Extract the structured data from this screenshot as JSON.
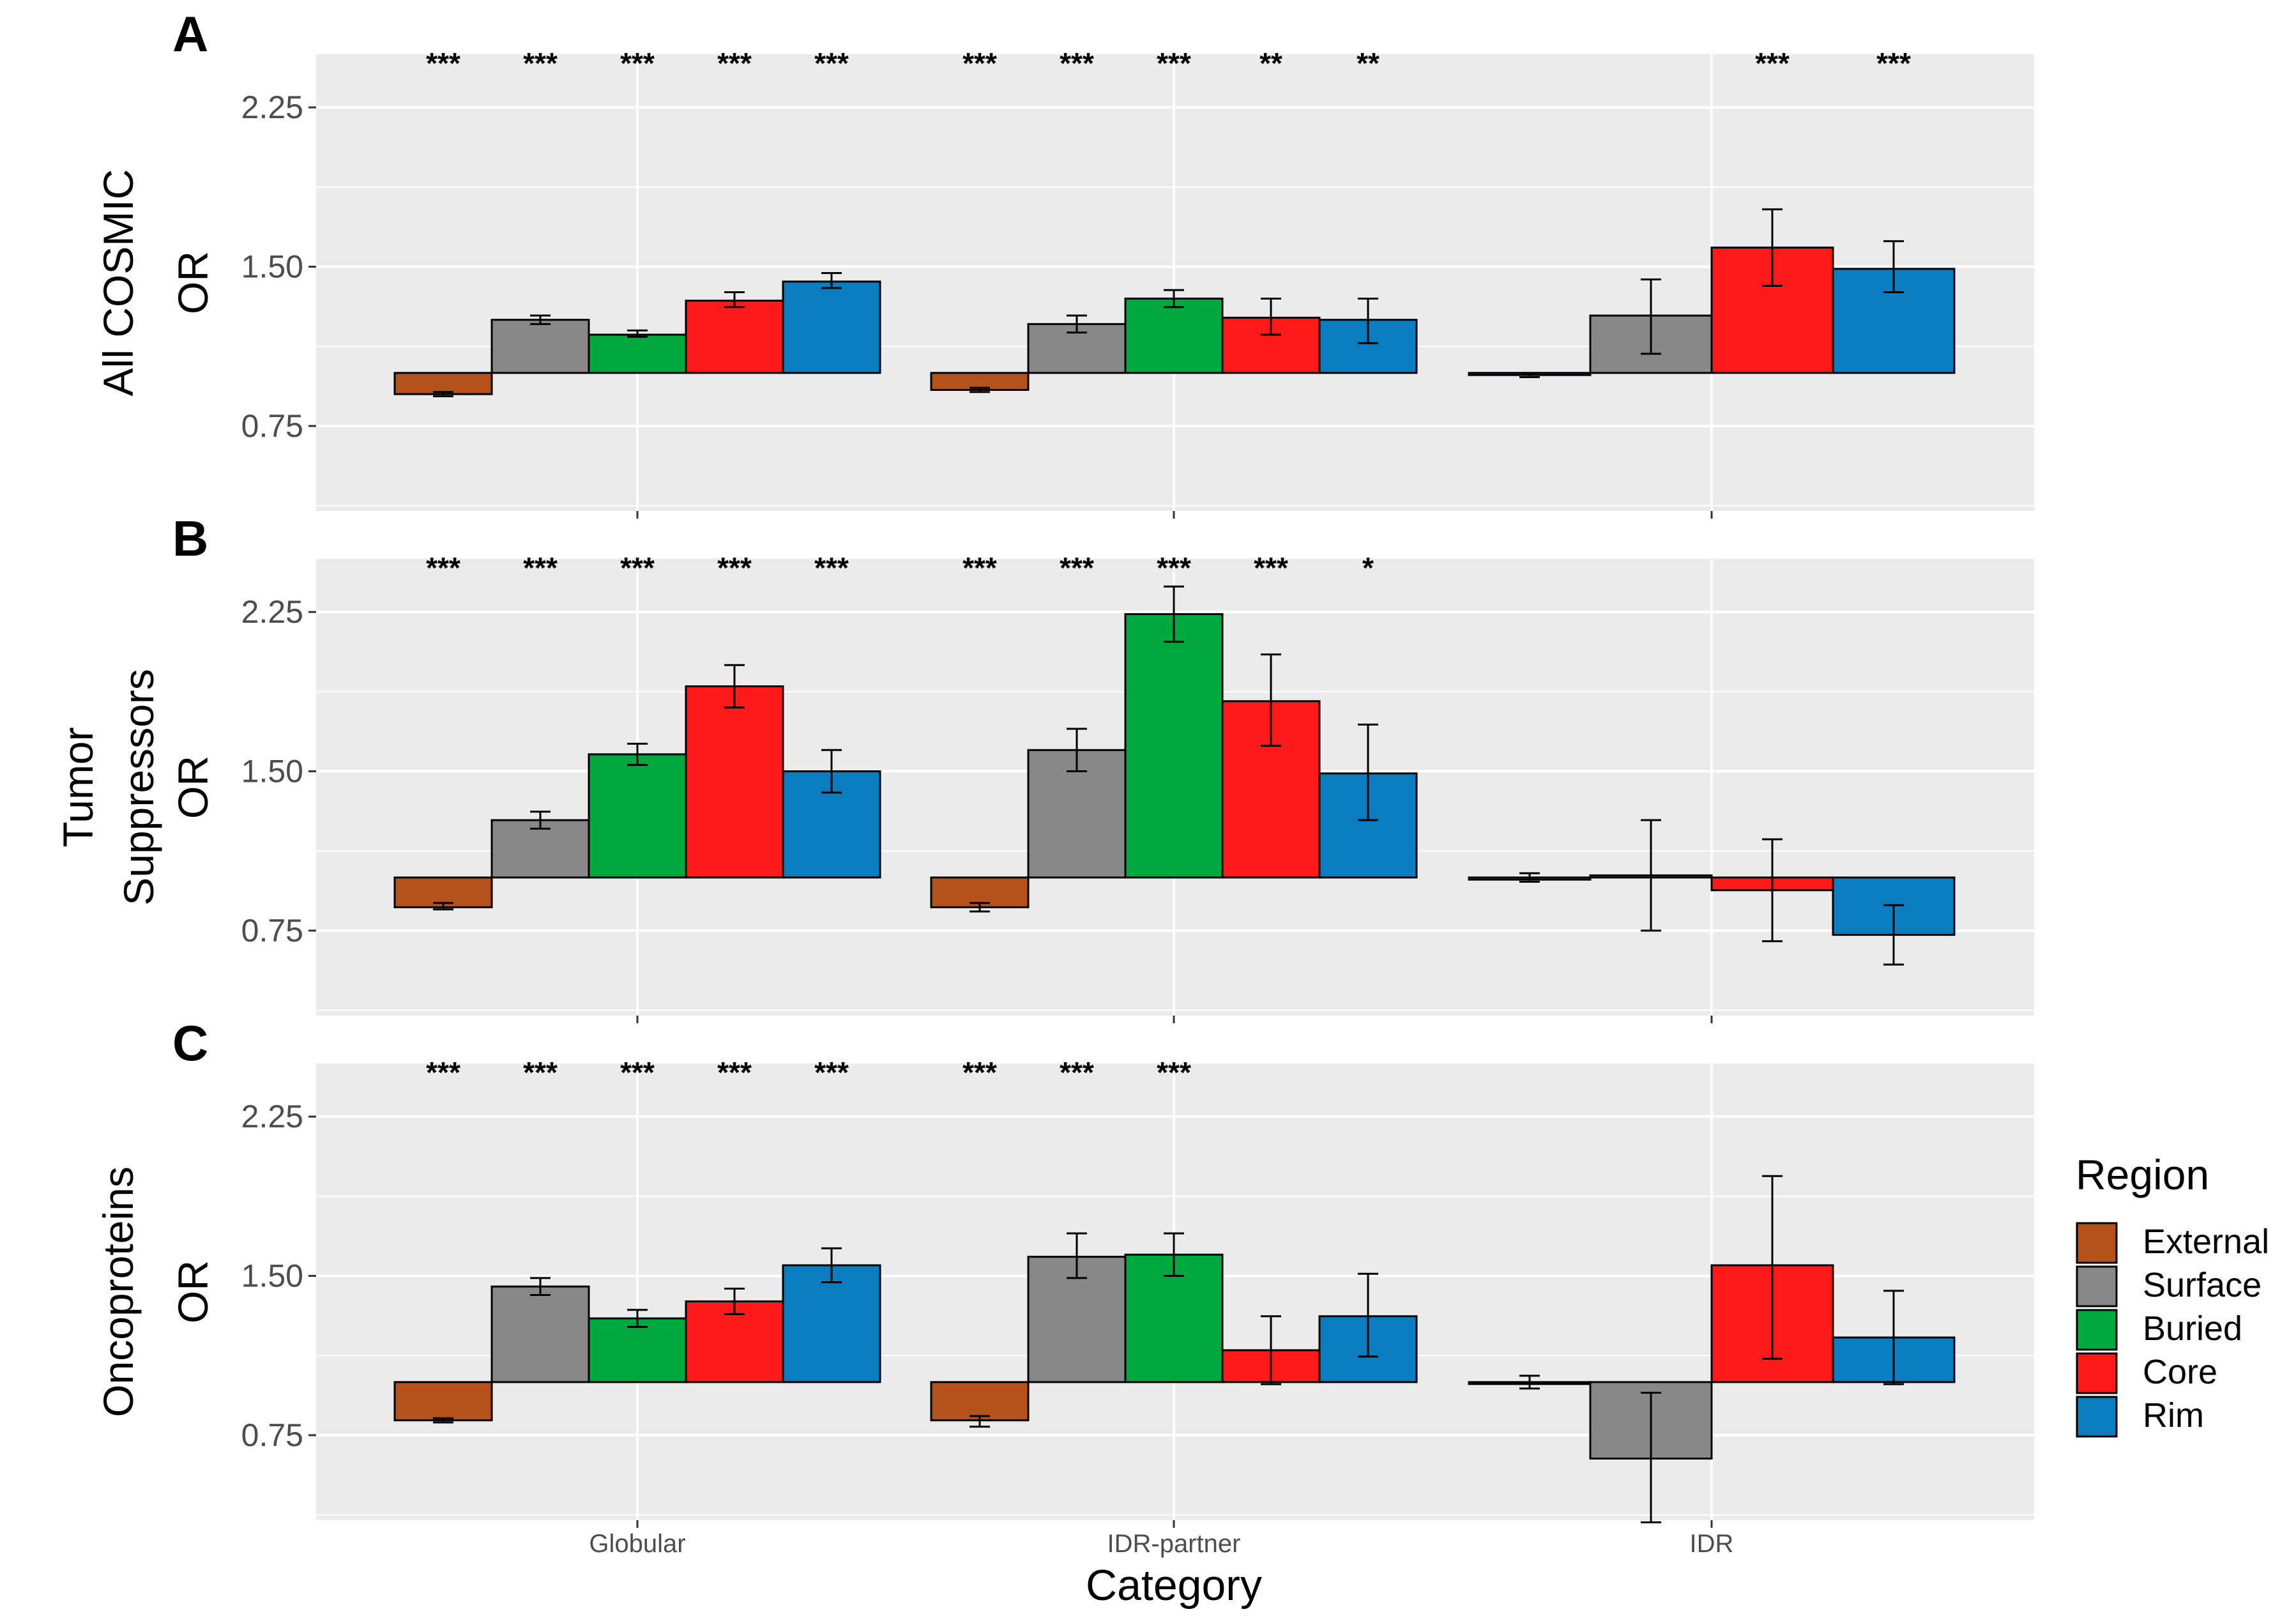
{
  "chart_data": {
    "type": "bar",
    "xlabel": "Category",
    "ylabel": "OR",
    "categories": [
      "Globular",
      "IDR-partner",
      "IDR"
    ],
    "yticks": [
      0.75,
      1.5,
      2.25
    ],
    "yticks_labels": [
      "0.75",
      "1.50",
      "2.25"
    ],
    "ylim": [
      0.35,
      2.5
    ],
    "baseline": 1.0,
    "grid": true,
    "legend": {
      "title": "Region",
      "position": "right",
      "items": [
        {
          "name": "External",
          "color": "#b5521b"
        },
        {
          "name": "Surface",
          "color": "#888888"
        },
        {
          "name": "Buried",
          "color": "#00a940"
        },
        {
          "name": "Core",
          "color": "#ff1a1a"
        },
        {
          "name": "Rim",
          "color": "#0a7dc0"
        }
      ]
    },
    "panels": [
      {
        "tag": "A",
        "strip_label": "All COSMIC",
        "series": [
          {
            "name": "External",
            "values": [
              0.9,
              0.92,
              0.99
            ],
            "err_low": [
              0.89,
              0.91,
              0.98
            ],
            "err_high": [
              0.91,
              0.93,
              1.0
            ]
          },
          {
            "name": "Surface",
            "values": [
              1.25,
              1.23,
              1.27
            ],
            "err_low": [
              1.23,
              1.19,
              1.09
            ],
            "err_high": [
              1.27,
              1.27,
              1.44
            ]
          },
          {
            "name": "Buried",
            "values": [
              1.18,
              1.35,
              null
            ],
            "err_low": [
              1.17,
              1.31,
              null
            ],
            "err_high": [
              1.2,
              1.39,
              null
            ]
          },
          {
            "name": "Core",
            "values": [
              1.34,
              1.26,
              1.59
            ],
            "err_low": [
              1.31,
              1.18,
              1.41
            ],
            "err_high": [
              1.38,
              1.35,
              1.77
            ]
          },
          {
            "name": "Rim",
            "values": [
              1.43,
              1.25,
              1.49
            ],
            "err_low": [
              1.4,
              1.14,
              1.38
            ],
            "err_high": [
              1.47,
              1.35,
              1.62
            ]
          }
        ],
        "significance": [
          [
            "***",
            "***",
            "***",
            "***",
            "***"
          ],
          [
            "***",
            "***",
            "***",
            "**",
            "**"
          ],
          [
            "",
            "",
            "",
            "***",
            "***"
          ]
        ]
      },
      {
        "tag": "B",
        "strip_label": "Tumor Suppressors",
        "series": [
          {
            "name": "External",
            "values": [
              0.86,
              0.86,
              0.99
            ],
            "err_low": [
              0.85,
              0.84,
              0.98
            ],
            "err_high": [
              0.88,
              0.88,
              1.02
            ]
          },
          {
            "name": "Surface",
            "values": [
              1.27,
              1.6,
              1.01
            ],
            "err_low": [
              1.23,
              1.5,
              0.75
            ],
            "err_high": [
              1.31,
              1.7,
              1.27
            ]
          },
          {
            "name": "Buried",
            "values": [
              1.58,
              2.24,
              null
            ],
            "err_low": [
              1.53,
              2.11,
              null
            ],
            "err_high": [
              1.63,
              2.37,
              null
            ]
          },
          {
            "name": "Core",
            "values": [
              1.9,
              1.83,
              0.94
            ],
            "err_low": [
              1.8,
              1.62,
              0.7
            ],
            "err_high": [
              2.0,
              2.05,
              1.18
            ]
          },
          {
            "name": "Rim",
            "values": [
              1.5,
              1.49,
              0.73
            ],
            "err_low": [
              1.4,
              1.27,
              0.59
            ],
            "err_high": [
              1.6,
              1.72,
              0.87
            ]
          }
        ],
        "significance": [
          [
            "***",
            "***",
            "***",
            "***",
            "***"
          ],
          [
            "***",
            "***",
            "***",
            "***",
            "*"
          ],
          [
            "",
            "",
            "",
            "",
            ""
          ]
        ]
      },
      {
        "tag": "C",
        "strip_label": "Oncoproteins",
        "series": [
          {
            "name": "External",
            "values": [
              0.82,
              0.82,
              1.0
            ],
            "err_low": [
              0.81,
              0.79,
              0.97
            ],
            "err_high": [
              0.83,
              0.84,
              1.03
            ]
          },
          {
            "name": "Surface",
            "values": [
              1.45,
              1.59,
              0.64
            ],
            "err_low": [
              1.41,
              1.49,
              0.34
            ],
            "err_high": [
              1.49,
              1.7,
              0.95
            ]
          },
          {
            "name": "Buried",
            "values": [
              1.3,
              1.6,
              null
            ],
            "err_low": [
              1.26,
              1.5,
              null
            ],
            "err_high": [
              1.34,
              1.7,
              null
            ]
          },
          {
            "name": "Core",
            "values": [
              1.38,
              1.15,
              1.55
            ],
            "err_low": [
              1.32,
              0.99,
              1.11
            ],
            "err_high": [
              1.44,
              1.31,
              1.97
            ]
          },
          {
            "name": "Rim",
            "values": [
              1.55,
              1.31,
              1.21
            ],
            "err_low": [
              1.47,
              1.12,
              0.99
            ],
            "err_high": [
              1.63,
              1.51,
              1.43
            ]
          }
        ],
        "significance": [
          [
            "***",
            "***",
            "***",
            "***",
            "***"
          ],
          [
            "***",
            "***",
            "***",
            "",
            ""
          ],
          [
            "",
            "",
            "",
            "",
            ""
          ]
        ]
      }
    ]
  }
}
